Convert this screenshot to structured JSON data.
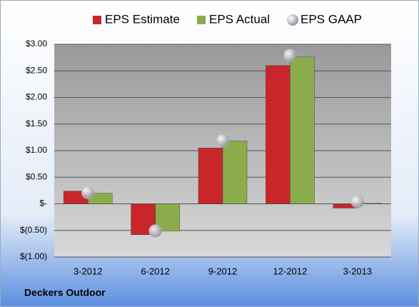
{
  "chart_data": {
    "type": "bar",
    "footer": "Deckers Outdoor",
    "categories": [
      "3-2012",
      "6-2012",
      "9-2012",
      "12-2012",
      "3-2013"
    ],
    "series": [
      {
        "name": "EPS Estimate",
        "color": "#c8262b",
        "type": "bar",
        "values": [
          0.24,
          -0.58,
          1.05,
          2.6,
          -0.08
        ]
      },
      {
        "name": "EPS Actual",
        "color": "#8aac4a",
        "type": "bar",
        "values": [
          0.2,
          -0.51,
          1.18,
          2.76,
          0.01
        ]
      },
      {
        "name": "EPS GAAP",
        "color": "#b8bcc4",
        "type": "scatter",
        "values": [
          0.21,
          -0.51,
          1.19,
          2.79,
          0.04
        ]
      }
    ],
    "ylim": [
      -1,
      3
    ],
    "yticks": [
      {
        "value": -1,
        "label": "$(1.00)"
      },
      {
        "value": -0.5,
        "label": "$(0.50)"
      },
      {
        "value": 0,
        "label": "$-"
      },
      {
        "value": 0.5,
        "label": "$0.50"
      },
      {
        "value": 1,
        "label": "$1.00"
      },
      {
        "value": 1.5,
        "label": "$1.50"
      },
      {
        "value": 2,
        "label": "$2.00"
      },
      {
        "value": 2.5,
        "label": "$2.50"
      },
      {
        "value": 3,
        "label": "$3.00"
      }
    ],
    "grid": true
  }
}
